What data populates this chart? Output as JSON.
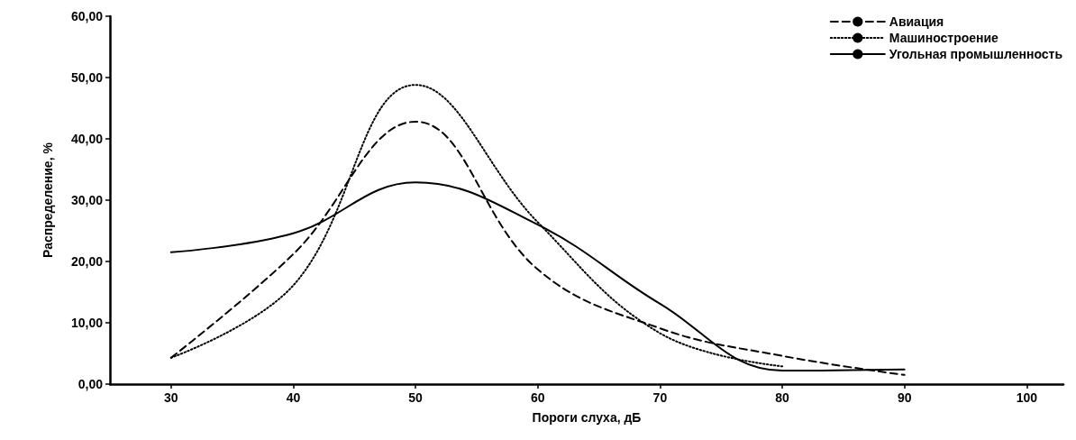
{
  "chart_data": {
    "type": "line",
    "xlabel": "Пороги слуха, дБ",
    "ylabel": "Распределение, %",
    "x": [
      30,
      40,
      50,
      60,
      70,
      80,
      90
    ],
    "xlim": [
      25,
      103
    ],
    "xticks": [
      30,
      40,
      50,
      60,
      70,
      80,
      90,
      100
    ],
    "ylim": [
      0,
      60
    ],
    "yticks": [
      {
        "value": 0,
        "label": "0,00"
      },
      {
        "value": 10,
        "label": "10,00"
      },
      {
        "value": 20,
        "label": "20,00"
      },
      {
        "value": 30,
        "label": "30,00"
      },
      {
        "value": 40,
        "label": "40,00"
      },
      {
        "value": 50,
        "label": "50,00"
      },
      {
        "value": 60,
        "label": "60,00"
      }
    ],
    "grid": false,
    "legend": "top right",
    "marker": "none",
    "series": [
      {
        "name": "Авиация",
        "color": "#000000",
        "line_style": "dashed",
        "values": [
          4.3,
          21.2,
          42.8,
          18.7,
          9.1,
          4.6,
          1.5
        ]
      },
      {
        "name": "Машиностроение",
        "color": "#000000",
        "line_style": "dotted",
        "values": [
          4.3,
          16.1,
          48.8,
          26.4,
          8.3,
          2.9,
          null
        ]
      },
      {
        "name": "Угольная промышленность",
        "color": "#000000",
        "line_style": "solid",
        "values": [
          21.5,
          24.6,
          32.9,
          26.0,
          13.1,
          2.2,
          2.4
        ]
      }
    ]
  }
}
